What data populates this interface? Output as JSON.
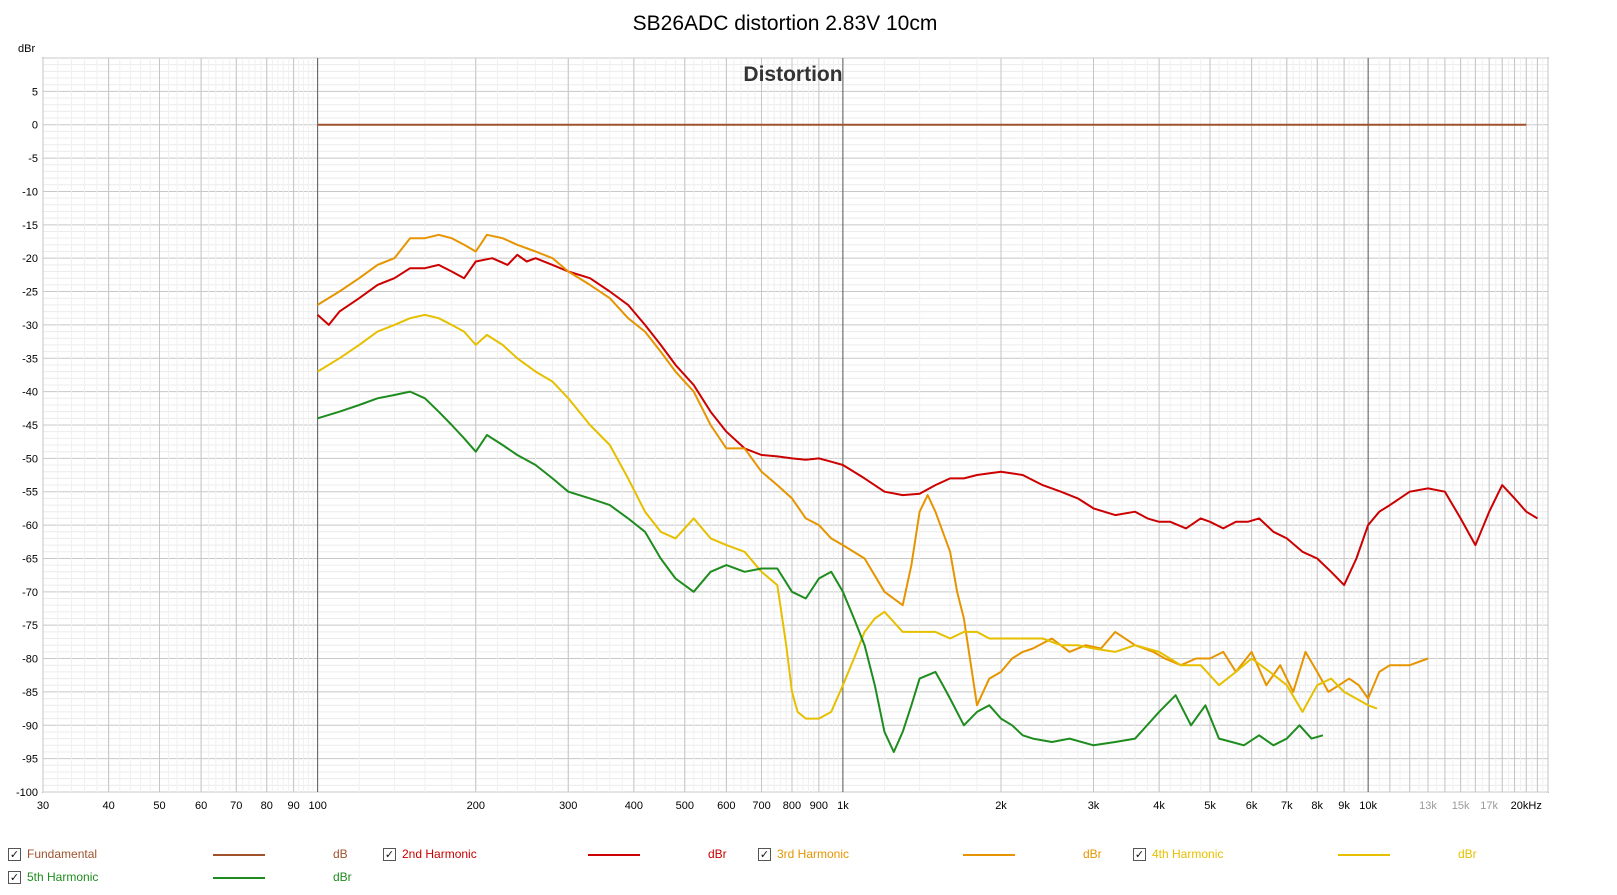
{
  "chart_data": {
    "type": "line",
    "title": "SB26ADC distortion 2.83V 10cm",
    "subtitle": "Distortion",
    "ylabel": "dBr",
    "xscale": "log",
    "xlim": [
      30,
      22000
    ],
    "ylim": [
      -100,
      10
    ],
    "grid": true,
    "legend_position": "bottom",
    "x_tick_labels": [
      {
        "v": 30,
        "t": "30"
      },
      {
        "v": 40,
        "t": "40"
      },
      {
        "v": 50,
        "t": "50"
      },
      {
        "v": 60,
        "t": "60"
      },
      {
        "v": 70,
        "t": "70"
      },
      {
        "v": 80,
        "t": "80"
      },
      {
        "v": 90,
        "t": "90"
      },
      {
        "v": 100,
        "t": "100"
      },
      {
        "v": 200,
        "t": "200"
      },
      {
        "v": 300,
        "t": "300"
      },
      {
        "v": 400,
        "t": "400"
      },
      {
        "v": 500,
        "t": "500"
      },
      {
        "v": 600,
        "t": "600"
      },
      {
        "v": 700,
        "t": "700"
      },
      {
        "v": 800,
        "t": "800"
      },
      {
        "v": 900,
        "t": "900"
      },
      {
        "v": 1000,
        "t": "1k"
      },
      {
        "v": 2000,
        "t": "2k"
      },
      {
        "v": 3000,
        "t": "3k"
      },
      {
        "v": 4000,
        "t": "4k"
      },
      {
        "v": 5000,
        "t": "5k"
      },
      {
        "v": 6000,
        "t": "6k"
      },
      {
        "v": 7000,
        "t": "7k"
      },
      {
        "v": 8000,
        "t": "8k"
      },
      {
        "v": 9000,
        "t": "9k"
      },
      {
        "v": 10000,
        "t": "10k"
      },
      {
        "v": 13000,
        "t": "13k",
        "minor": true
      },
      {
        "v": 15000,
        "t": "15k",
        "minor": true
      },
      {
        "v": 17000,
        "t": "17k",
        "minor": true
      },
      {
        "v": 20000,
        "t": "20kHz"
      }
    ],
    "y_tick_labels": [
      "5",
      "0",
      "-5",
      "-10",
      "-15",
      "-20",
      "-25",
      "-30",
      "-35",
      "-40",
      "-45",
      "-50",
      "-55",
      "-60",
      "-65",
      "-70",
      "-75",
      "-80",
      "-85",
      "-90",
      "-95",
      "-100"
    ],
    "series": [
      {
        "name": "Fundamental",
        "unit": "dB",
        "color": "#a0522d",
        "x": [
          100,
          20000
        ],
        "y": [
          0,
          0
        ]
      },
      {
        "name": "2nd Harmonic",
        "unit": "dBr",
        "color": "#cc0000",
        "x": [
          100,
          105,
          110,
          120,
          130,
          140,
          150,
          160,
          170,
          180,
          190,
          200,
          215,
          230,
          240,
          250,
          260,
          280,
          300,
          330,
          360,
          390,
          420,
          450,
          480,
          520,
          560,
          600,
          650,
          700,
          750,
          800,
          850,
          900,
          950,
          1000,
          1100,
          1200,
          1300,
          1400,
          1500,
          1600,
          1700,
          1800,
          2000,
          2200,
          2400,
          2600,
          2800,
          3000,
          3300,
          3600,
          3800,
          4000,
          4200,
          4500,
          4800,
          5000,
          5300,
          5600,
          5900,
          6200,
          6600,
          7000,
          7500,
          8000,
          8500,
          9000,
          9500,
          10000,
          10500,
          11000,
          12000,
          13000,
          14000,
          15000,
          16000,
          17000,
          18000,
          19000,
          20000,
          21000
        ],
        "y": [
          -28.5,
          -30,
          -28,
          -26,
          -24,
          -23,
          -21.5,
          -21.5,
          -21,
          -22,
          -23,
          -20.5,
          -20,
          -21,
          -19.5,
          -20.5,
          -20,
          -21,
          -22,
          -23,
          -25,
          -27,
          -30,
          -33,
          -36,
          -39,
          -43,
          -46,
          -48.5,
          -49.5,
          -49.7,
          -50,
          -50.2,
          -50,
          -50.5,
          -51,
          -53,
          -55,
          -55.5,
          -55.3,
          -54,
          -53,
          -53,
          -52.5,
          -52,
          -52.5,
          -54,
          -55,
          -56,
          -57.5,
          -58.5,
          -58,
          -59,
          -59.5,
          -59.5,
          -60.5,
          -59,
          -59.5,
          -60.5,
          -59.5,
          -59.5,
          -59,
          -61,
          -62,
          -64,
          -65,
          -67,
          -69,
          -65,
          -60,
          -58,
          -57,
          -55,
          -54.5,
          -55,
          -59,
          -63,
          -58,
          -54,
          -56,
          -58,
          -59
        ]
      },
      {
        "name": "3rd Harmonic",
        "unit": "dBr",
        "color": "#e69500",
        "x": [
          100,
          110,
          120,
          130,
          140,
          150,
          160,
          170,
          180,
          190,
          200,
          210,
          225,
          240,
          260,
          280,
          300,
          330,
          360,
          390,
          420,
          450,
          480,
          520,
          560,
          600,
          650,
          700,
          750,
          800,
          850,
          900,
          950,
          1000,
          1100,
          1200,
          1300,
          1350,
          1400,
          1450,
          1500,
          1600,
          1650,
          1700,
          1800,
          1900,
          2000,
          2100,
          2200,
          2300,
          2500,
          2700,
          2900,
          3100,
          3300,
          3600,
          3900,
          4100,
          4400,
          4700,
          5000,
          5300,
          5600,
          6000,
          6400,
          6800,
          7200,
          7600,
          8000,
          8400,
          8800,
          9200,
          9600,
          10000,
          10500,
          11000,
          12000,
          13000
        ],
        "y": [
          -27,
          -25,
          -23,
          -21,
          -20,
          -17,
          -17,
          -16.5,
          -17,
          -18,
          -19,
          -16.5,
          -17,
          -18,
          -19,
          -20,
          -22,
          -24,
          -26,
          -29,
          -31,
          -34,
          -37,
          -40,
          -45,
          -48.5,
          -48.5,
          -52,
          -54,
          -56,
          -59,
          -60,
          -62,
          -63,
          -65,
          -70,
          -72,
          -66,
          -58,
          -55.5,
          -58,
          -64,
          -70,
          -74,
          -87,
          -83,
          -82,
          -80,
          -79,
          -78.5,
          -77,
          -79,
          -78,
          -78.5,
          -76,
          -78,
          -79,
          -80,
          -81,
          -80,
          -80,
          -79,
          -82,
          -79,
          -84,
          -81,
          -85,
          -79,
          -82,
          -85,
          -84,
          -83,
          -84,
          -86,
          -82,
          -81,
          -81,
          -80
        ]
      },
      {
        "name": "4th Harmonic",
        "unit": "dBr",
        "color": "#e6c000",
        "x": [
          100,
          110,
          120,
          130,
          140,
          150,
          160,
          170,
          180,
          190,
          200,
          210,
          225,
          240,
          260,
          280,
          300,
          330,
          360,
          390,
          420,
          450,
          480,
          520,
          560,
          600,
          650,
          700,
          750,
          760,
          780,
          800,
          820,
          850,
          900,
          950,
          1000,
          1050,
          1100,
          1150,
          1200,
          1300,
          1400,
          1500,
          1600,
          1700,
          1800,
          1900,
          2000,
          2200,
          2400,
          2600,
          2800,
          3000,
          3300,
          3600,
          4000,
          4400,
          4800,
          5200,
          5600,
          6000,
          6500,
          7000,
          7500,
          8000,
          8500,
          9000,
          9500,
          10000,
          10400
        ],
        "y": [
          -37,
          -35,
          -33,
          -31,
          -30,
          -29,
          -28.5,
          -29,
          -30,
          -31,
          -33,
          -31.5,
          -33,
          -35,
          -37,
          -38.5,
          -41,
          -45,
          -48,
          -53,
          -58,
          -61,
          -62,
          -59,
          -62,
          -63,
          -64,
          -67,
          -69,
          -72,
          -78,
          -85,
          -88,
          -89,
          -89,
          -88,
          -84,
          -80,
          -76,
          -74,
          -73,
          -76,
          -76,
          -76,
          -77,
          -76,
          -76,
          -77,
          -77,
          -77,
          -77,
          -78,
          -78,
          -78.5,
          -79,
          -78,
          -79,
          -81,
          -81,
          -84,
          -82,
          -80,
          -82,
          -84,
          -88,
          -84,
          -83,
          -85,
          -86,
          -87,
          -87.5
        ]
      },
      {
        "name": "5th Harmonic",
        "unit": "dBr",
        "color": "#1e8c1e",
        "x": [
          100,
          110,
          120,
          130,
          140,
          150,
          160,
          170,
          180,
          190,
          200,
          210,
          225,
          240,
          260,
          280,
          300,
          330,
          360,
          390,
          420,
          450,
          480,
          520,
          560,
          600,
          650,
          700,
          750,
          800,
          850,
          900,
          950,
          1000,
          1050,
          1100,
          1150,
          1200,
          1250,
          1300,
          1350,
          1400,
          1500,
          1550,
          1600,
          1700,
          1800,
          1900,
          2000,
          2100,
          2200,
          2300,
          2500,
          2700,
          3000,
          3300,
          3600,
          4000,
          4300,
          4600,
          4900,
          5200,
          5500,
          5800,
          6200,
          6600,
          7000,
          7400,
          7800,
          8200
        ],
        "y": [
          -44,
          -43,
          -42,
          -41,
          -40.5,
          -40,
          -41,
          -43,
          -45,
          -47,
          -49,
          -46.5,
          -48,
          -49.5,
          -51,
          -53,
          -55,
          -56,
          -57,
          -59,
          -61,
          -65,
          -68,
          -70,
          -67,
          -66,
          -67,
          -66.5,
          -66.5,
          -70,
          -71,
          -68,
          -67,
          -70,
          -74,
          -78,
          -84,
          -91,
          -94,
          -91,
          -87,
          -83,
          -82,
          -84,
          -86,
          -90,
          -88,
          -87,
          -89,
          -90,
          -91.5,
          -92,
          -92.5,
          -92,
          -93,
          -92.5,
          -92,
          -88,
          -85.5,
          -90,
          -87,
          -92,
          -92.5,
          -93,
          -91.5,
          -93,
          -92,
          -90,
          -92,
          -91.5
        ]
      }
    ]
  },
  "legend": [
    {
      "name": "Fundamental",
      "unit": "dB",
      "color": "#a0522d",
      "checked": "✓"
    },
    {
      "name": "2nd Harmonic",
      "unit": "dBr",
      "color": "#cc0000",
      "checked": "✓"
    },
    {
      "name": "3rd Harmonic",
      "unit": "dBr",
      "color": "#e69500",
      "checked": "✓"
    },
    {
      "name": "4th Harmonic",
      "unit": "dBr",
      "color": "#e6c000",
      "checked": "✓"
    },
    {
      "name": "5th Harmonic",
      "unit": "dBr",
      "color": "#1e8c1e",
      "checked": "✓"
    }
  ]
}
